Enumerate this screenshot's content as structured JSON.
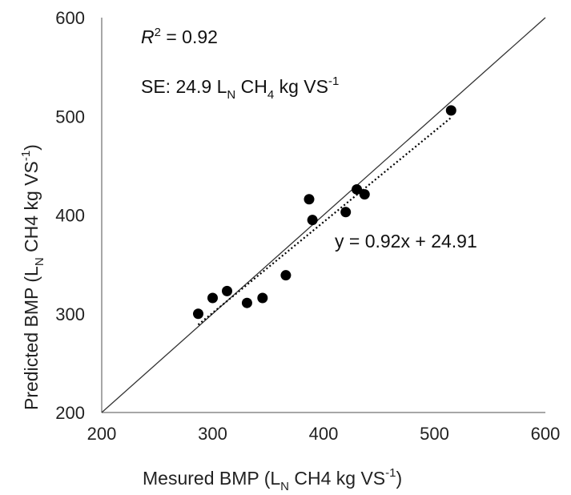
{
  "chart_data": {
    "type": "scatter",
    "title": "",
    "xlabel": "Mesured BMP  (L",
    "xlabel_sub": "N",
    "xlabel_rest": " CH4 kg VS",
    "xlabel_sup": "-1",
    "xlabel_close": ")",
    "ylabel": "Predicted  BMP  (L",
    "ylabel_sub": "N",
    "ylabel_rest": " CH4 kg VS",
    "ylabel_sup": "-1",
    "ylabel_close": ")",
    "xlim": [
      200,
      600
    ],
    "ylim": [
      200,
      600
    ],
    "xticks": [
      "200",
      "300",
      "400",
      "500",
      "600"
    ],
    "yticks": [
      "200",
      "300",
      "400",
      "500",
      "600"
    ],
    "grid": false,
    "points": [
      {
        "x": 287,
        "y": 300
      },
      {
        "x": 300,
        "y": 316
      },
      {
        "x": 313,
        "y": 323
      },
      {
        "x": 331,
        "y": 311
      },
      {
        "x": 345,
        "y": 316
      },
      {
        "x": 366,
        "y": 339
      },
      {
        "x": 387,
        "y": 416
      },
      {
        "x": 390,
        "y": 395
      },
      {
        "x": 420,
        "y": 403
      },
      {
        "x": 430,
        "y": 426
      },
      {
        "x": 437,
        "y": 421
      },
      {
        "x": 515,
        "y": 506
      }
    ],
    "identity_line": {
      "from": 200,
      "to": 600
    },
    "trendline": {
      "slope": 0.92,
      "intercept": 24.91,
      "x_range": [
        287,
        515
      ]
    },
    "annotations": {
      "r2_var": "R",
      "r2_sup": "2",
      "r2_value": " = 0.92",
      "se_prefix": "SE: 24.9 L",
      "se_sub": "N",
      "se_mid": " CH",
      "se_sub2": "4",
      "se_rest": " kg VS",
      "se_sup": "-1",
      "equation": "y = 0.92x + 24.91"
    },
    "colors": {
      "points": "#000000",
      "axis": "#888888",
      "identity": "#333333",
      "trend": "#000000"
    }
  }
}
